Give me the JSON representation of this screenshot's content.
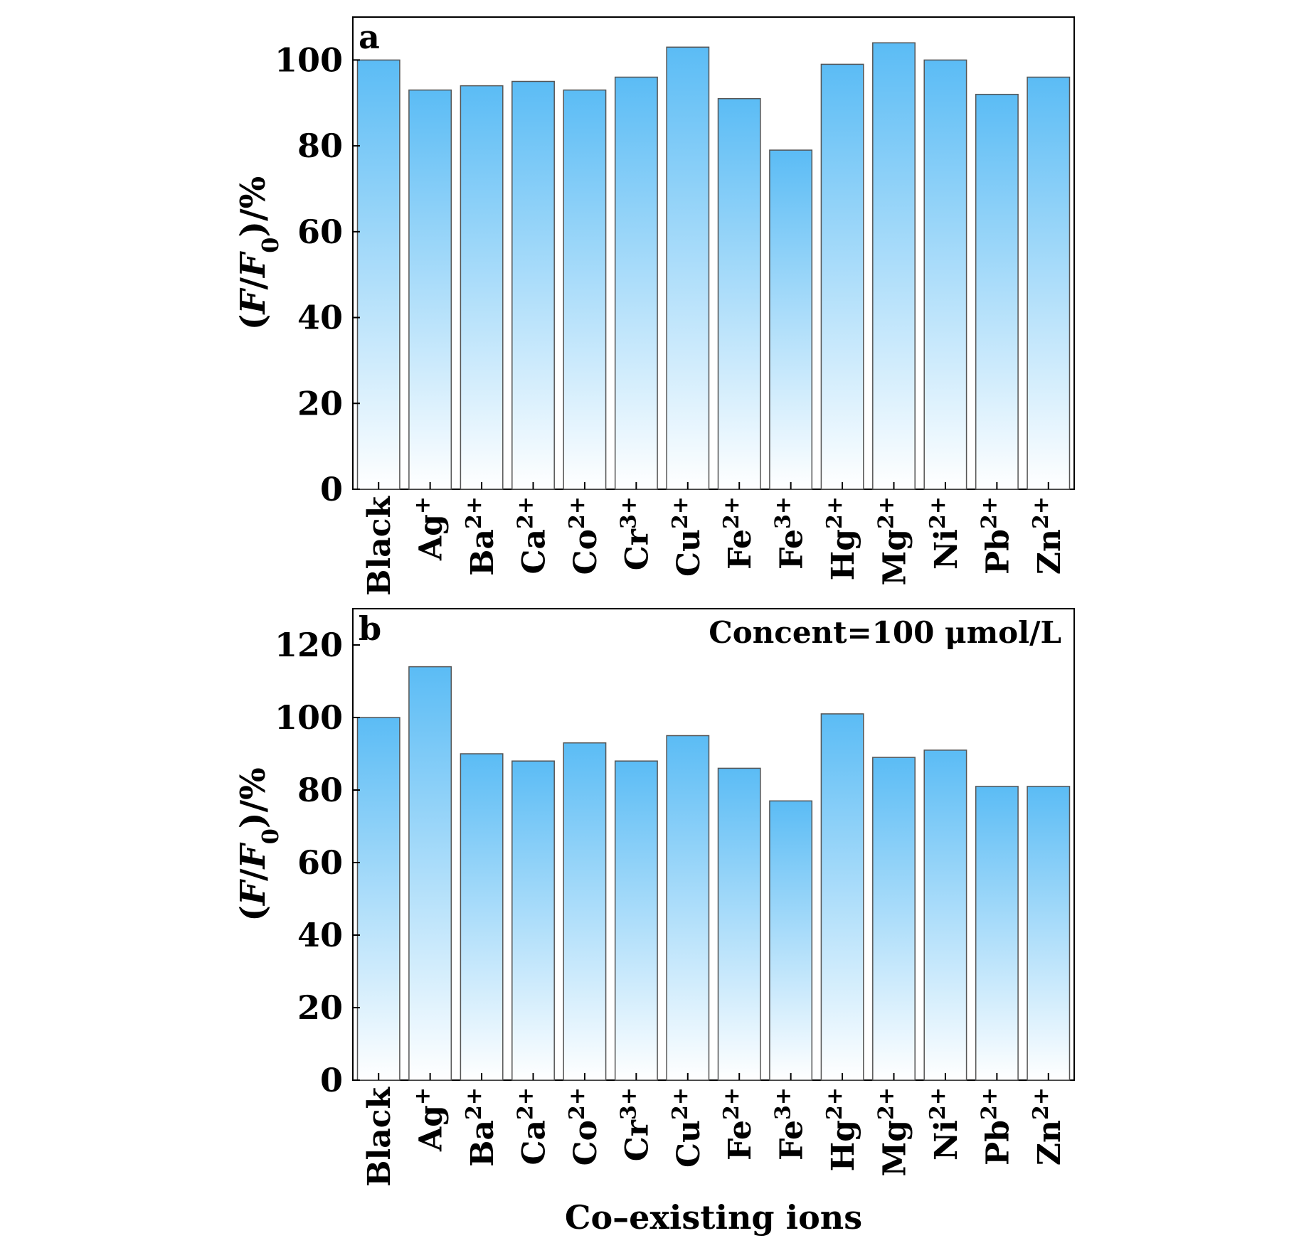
{
  "figure": {
    "xlabel": "Co–existing ions"
  },
  "chart_data": [
    {
      "type": "bar",
      "panel_label": "a",
      "note": "",
      "ylabel_prefix": "(",
      "ylabel_F": "F",
      "ylabel_slash": "/",
      "ylabel_F0": "F",
      "ylabel_sub": "0",
      "ylabel_suffix": ")/%",
      "ylim": [
        0,
        110
      ],
      "yticks": [
        0,
        20,
        40,
        60,
        80,
        100
      ],
      "categories": [
        {
          "base": "Black",
          "sup": ""
        },
        {
          "base": "Ag",
          "sup": "+"
        },
        {
          "base": "Ba",
          "sup": "2+"
        },
        {
          "base": "Ca",
          "sup": "2+"
        },
        {
          "base": "Co",
          "sup": "2+"
        },
        {
          "base": "Cr",
          "sup": "3+"
        },
        {
          "base": "Cu",
          "sup": "2+"
        },
        {
          "base": "Fe",
          "sup": "2+"
        },
        {
          "base": "Fe",
          "sup": "3+"
        },
        {
          "base": "Hg",
          "sup": "2+"
        },
        {
          "base": "Mg",
          "sup": "2+"
        },
        {
          "base": "Ni",
          "sup": "2+"
        },
        {
          "base": "Pb",
          "sup": "2+"
        },
        {
          "base": "Zn",
          "sup": "2+"
        }
      ],
      "values": [
        100,
        93,
        94,
        95,
        93,
        96,
        103,
        91,
        79,
        99,
        104,
        100,
        92,
        96
      ]
    },
    {
      "type": "bar",
      "panel_label": "b",
      "note": "Concent=100 μmol/L",
      "ylabel_prefix": "(",
      "ylabel_F": "F",
      "ylabel_slash": "/",
      "ylabel_F0": "F",
      "ylabel_sub": "0",
      "ylabel_suffix": ")/%",
      "ylim": [
        0,
        130
      ],
      "yticks": [
        0,
        20,
        40,
        60,
        80,
        100,
        120
      ],
      "categories": [
        {
          "base": "Black",
          "sup": ""
        },
        {
          "base": "Ag",
          "sup": "+"
        },
        {
          "base": "Ba",
          "sup": "2+"
        },
        {
          "base": "Ca",
          "sup": "2+"
        },
        {
          "base": "Co",
          "sup": "2+"
        },
        {
          "base": "Cr",
          "sup": "3+"
        },
        {
          "base": "Cu",
          "sup": "2+"
        },
        {
          "base": "Fe",
          "sup": "2+"
        },
        {
          "base": "Fe",
          "sup": "3+"
        },
        {
          "base": "Hg",
          "sup": "2+"
        },
        {
          "base": "Mg",
          "sup": "2+"
        },
        {
          "base": "Ni",
          "sup": "2+"
        },
        {
          "base": "Pb",
          "sup": "2+"
        },
        {
          "base": "Zn",
          "sup": "2+"
        }
      ],
      "values": [
        100,
        114,
        90,
        88,
        93,
        88,
        95,
        86,
        77,
        101,
        89,
        91,
        81,
        81
      ],
      "bar_color_top": "#5bbcf5",
      "bar_color_bottom": "#ffffff"
    }
  ],
  "colors": {
    "bar_top": "#5bbcf5",
    "bar_bottom": "#ffffff",
    "bar_edge": "#555555",
    "axis": "#000000"
  }
}
